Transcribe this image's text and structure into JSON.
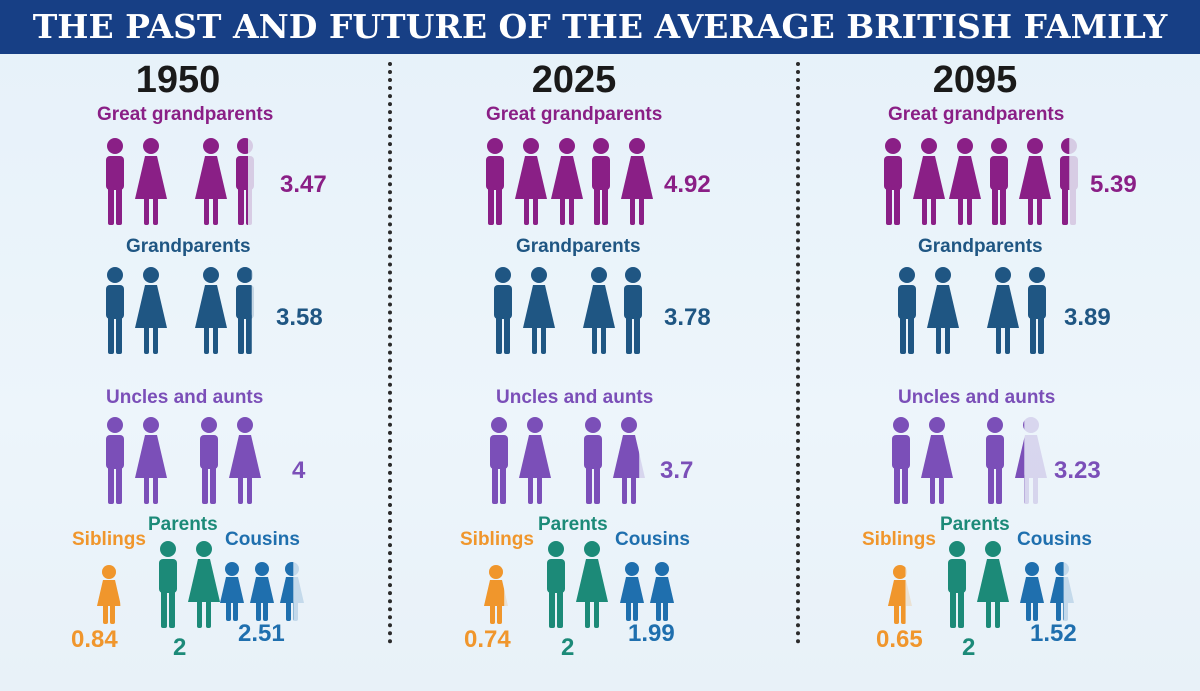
{
  "title": "THE PAST AND FUTURE OF THE AVERAGE BRITISH FAMILY",
  "colors": {
    "title_bar": "#173f85",
    "great_grandparents": "#8a1f86",
    "grandparents": "#1f5683",
    "uncles_and_aunts": "#7b4fb8",
    "siblings": "#f0962c",
    "parents": "#1c8a78",
    "cousins": "#1f6fae"
  },
  "labels": {
    "great_grandparents": "Great grandparents",
    "grandparents": "Grandparents",
    "uncles_and_aunts": "Uncles and aunts",
    "siblings": "Siblings",
    "parents": "Parents",
    "cousins": "Cousins"
  },
  "columns": [
    {
      "year": "1950",
      "great_grandparents": "3.47",
      "grandparents": "3.58",
      "uncles_and_aunts": "4",
      "siblings": "0.84",
      "parents": "2",
      "cousins": "2.51"
    },
    {
      "year": "2025",
      "great_grandparents": "4.92",
      "grandparents": "3.78",
      "uncles_and_aunts": "3.7",
      "siblings": "0.74",
      "parents": "2",
      "cousins": "1.99"
    },
    {
      "year": "2095",
      "great_grandparents": "5.39",
      "grandparents": "3.89",
      "uncles_and_aunts": "3.23",
      "siblings": "0.65",
      "parents": "2",
      "cousins": "1.52"
    }
  ]
}
